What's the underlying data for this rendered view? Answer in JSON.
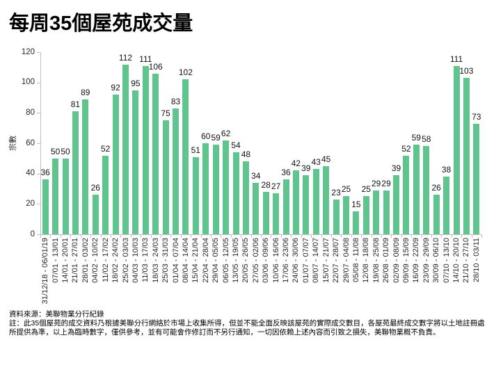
{
  "chart_data": {
    "type": "bar",
    "title": "每周35個屋苑成交量",
    "ylabel": "宗數",
    "xlabel": "",
    "ylim": [
      0,
      120
    ],
    "yticks": [
      0,
      20,
      40,
      60,
      80,
      100,
      120
    ],
    "grid": false,
    "legend": "none",
    "bar_color": "#5FC48E",
    "axis_color": "#BFBFBF",
    "categories": [
      "31/12/18 - 06/01/19",
      "07/01 - 13/01",
      "14/01 - 20/01",
      "21/01 - 27/01",
      "28/01 - 03/02",
      "04/02 - 10/02",
      "11/02 - 17/02",
      "18/02 - 24/02",
      "25/02 - 03/03",
      "04/03 - 10/03",
      "11/03 - 17/03",
      "18/03 - 24/03",
      "25/03 - 31/03",
      "01/04 - 07/04",
      "08/04 - 14/04",
      "15/04 - 21/04",
      "22/04 - 28/04",
      "29/04 - 05/05",
      "06/05 - 12/05",
      "13/05 - 19/05",
      "20/05 - 26/05",
      "27/05 - 02/06",
      "03/06 - 09/06",
      "10/06 - 16/06",
      "17/06 - 23/06",
      "24/06 - 30/06",
      "01/07 - 07/07",
      "08/07 - 14/07",
      "15/07 - 21/07",
      "22/07 - 28/07",
      "29/07 - 04/08",
      "05/08 - 11/08",
      "12/08 - 18/08",
      "19/08 - 25/08",
      "26/08 - 01/09",
      "02/09 - 08/09",
      "09/09 - 15/09",
      "16/09 - 22/09",
      "23/09 - 29/09",
      "30/09 - 06/10",
      "07/10 - 13/10",
      "14/10 - 20/10",
      "21/10 - 27/10",
      "28/10 - 03/11"
    ],
    "values": [
      36,
      50,
      50,
      81,
      89,
      26,
      52,
      92,
      112,
      95,
      111,
      106,
      75,
      83,
      102,
      51,
      60,
      59,
      62,
      54,
      48,
      34,
      28,
      27,
      36,
      42,
      39,
      43,
      45,
      23,
      25,
      15,
      25,
      29,
      29,
      39,
      52,
      59,
      58,
      26,
      38,
      111,
      103,
      73
    ]
  },
  "footer": {
    "source": "資料來源：美聯物業分行紀錄",
    "note_line1": "註：此35個屋苑的成交資料乃根據美聯分行網絡於市場上收集所得，但並不能全面反映該屋苑的實際成交數目，各屋苑最終成交數字將以土地註冊處",
    "note_line2": "所提供為準，以上為臨時數字，僅供參考，並有可能會作修訂而不另行通知，一切因依賴上述內容而引致之損失，美聯物業概不負責。"
  }
}
